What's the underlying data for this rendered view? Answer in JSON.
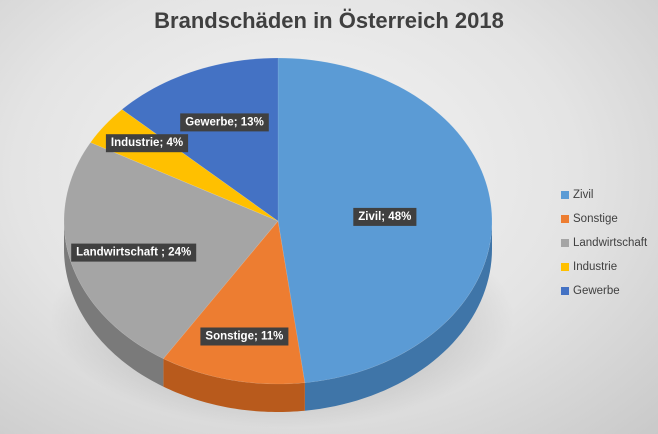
{
  "chart_data": {
    "type": "pie",
    "title": "Brandschäden in Österreich 2018",
    "legend_position": "right",
    "slices": [
      {
        "name": "Zivil",
        "value": 48,
        "label": "Zivil; 48%",
        "color": "#5b9bd5",
        "dark": "#3f75a8"
      },
      {
        "name": "Sonstige",
        "value": 11,
        "label": "Sonstige; 11%",
        "color": "#ed7d31",
        "dark": "#b85a1c"
      },
      {
        "name": "Landwirtschaft",
        "value": 24,
        "label": "Landwirtschaft ; 24%",
        "color": "#a5a5a5",
        "dark": "#7a7a7a"
      },
      {
        "name": "Industrie",
        "value": 4,
        "label": "Industrie; 4%",
        "color": "#ffc000",
        "dark": "#c79300"
      },
      {
        "name": "Gewerbe",
        "value": 13,
        "label": "Gewerbe; 13%",
        "color": "#4472c4",
        "dark": "#2f5597"
      }
    ]
  }
}
